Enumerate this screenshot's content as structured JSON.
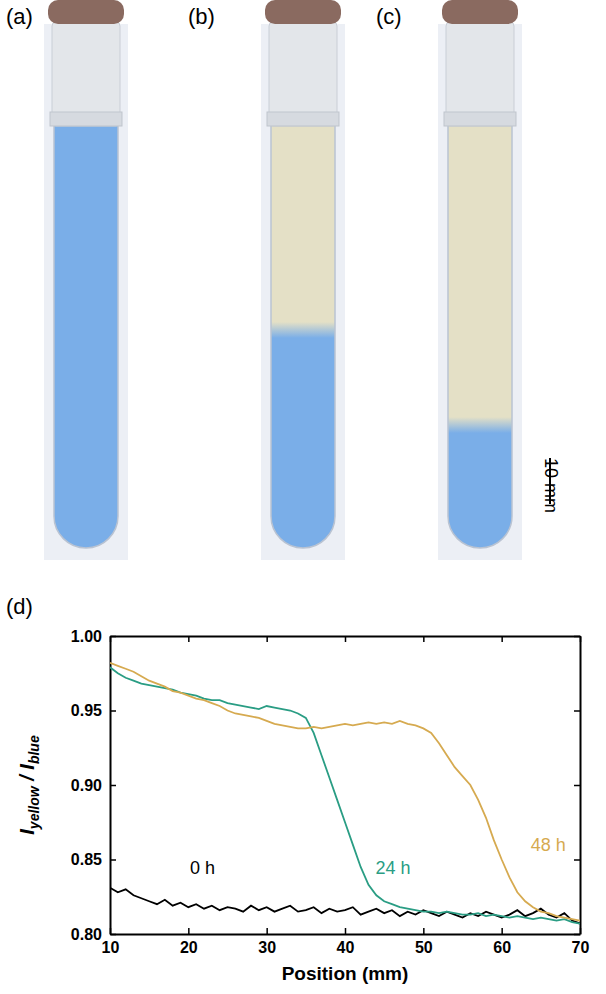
{
  "panel_labels": [
    "(a)",
    "(b)",
    "(c)",
    "(d)"
  ],
  "scale_bar_label": "10 mm",
  "chart_data": {
    "type": "line",
    "x_label": "Position (mm)",
    "y_label": "Iyellow / Iblue",
    "xlim": [
      10,
      70
    ],
    "xticks": [
      10,
      20,
      30,
      40,
      50,
      60,
      70
    ],
    "ylim": [
      0.8,
      1.0
    ],
    "yticks": [
      {
        "value": 0.8,
        "label": "0.80"
      },
      0.85,
      {
        "value": 0.9,
        "label": "0.90"
      },
      0.95,
      {
        "value": 1.0,
        "label": "1.00"
      }
    ],
    "x": [
      10,
      11,
      12,
      13,
      14,
      15,
      16,
      17,
      18,
      19,
      20,
      21,
      22,
      23,
      24,
      25,
      26,
      27,
      28,
      29,
      30,
      31,
      32,
      33,
      34,
      35,
      36,
      37,
      38,
      39,
      40,
      41,
      42,
      43,
      44,
      45,
      46,
      47,
      48,
      49,
      50,
      51,
      52,
      53,
      54,
      55,
      56,
      57,
      58,
      59,
      60,
      61,
      62,
      63,
      64,
      65,
      66,
      67,
      68,
      69,
      70
    ],
    "series": [
      {
        "name": "0 h",
        "color": "#000000",
        "values": [
          0.831,
          0.828,
          0.83,
          0.826,
          0.824,
          0.822,
          0.82,
          0.823,
          0.819,
          0.821,
          0.818,
          0.82,
          0.817,
          0.819,
          0.816,
          0.818,
          0.817,
          0.815,
          0.819,
          0.816,
          0.818,
          0.815,
          0.817,
          0.819,
          0.815,
          0.816,
          0.818,
          0.814,
          0.817,
          0.815,
          0.816,
          0.818,
          0.813,
          0.815,
          0.817,
          0.814,
          0.816,
          0.812,
          0.815,
          0.813,
          0.816,
          0.814,
          0.812,
          0.815,
          0.813,
          0.811,
          0.814,
          0.812,
          0.815,
          0.813,
          0.811,
          0.813,
          0.816,
          0.812,
          0.814,
          0.817,
          0.813,
          0.811,
          0.814,
          0.809,
          0.807
        ]
      },
      {
        "name": "24 h",
        "color": "#2a9d84",
        "values": [
          0.979,
          0.975,
          0.972,
          0.97,
          0.968,
          0.967,
          0.966,
          0.965,
          0.964,
          0.962,
          0.961,
          0.96,
          0.958,
          0.957,
          0.957,
          0.955,
          0.954,
          0.953,
          0.952,
          0.951,
          0.953,
          0.952,
          0.951,
          0.95,
          0.948,
          0.945,
          0.935,
          0.92,
          0.905,
          0.89,
          0.875,
          0.86,
          0.845,
          0.833,
          0.826,
          0.822,
          0.82,
          0.818,
          0.817,
          0.816,
          0.815,
          0.815,
          0.814,
          0.815,
          0.814,
          0.813,
          0.813,
          0.814,
          0.812,
          0.813,
          0.812,
          0.811,
          0.812,
          0.811,
          0.81,
          0.811,
          0.81,
          0.809,
          0.81,
          0.808,
          0.807
        ]
      },
      {
        "name": "48 h",
        "color": "#d6aa50",
        "values": [
          0.982,
          0.98,
          0.978,
          0.976,
          0.973,
          0.97,
          0.968,
          0.966,
          0.963,
          0.962,
          0.96,
          0.958,
          0.957,
          0.955,
          0.953,
          0.95,
          0.948,
          0.947,
          0.946,
          0.945,
          0.943,
          0.941,
          0.94,
          0.939,
          0.938,
          0.938,
          0.939,
          0.938,
          0.939,
          0.94,
          0.941,
          0.94,
          0.941,
          0.942,
          0.941,
          0.942,
          0.941,
          0.943,
          0.941,
          0.94,
          0.938,
          0.935,
          0.928,
          0.92,
          0.912,
          0.906,
          0.9,
          0.89,
          0.878,
          0.863,
          0.85,
          0.838,
          0.828,
          0.822,
          0.818,
          0.815,
          0.814,
          0.812,
          0.811,
          0.81,
          0.809
        ]
      }
    ]
  }
}
